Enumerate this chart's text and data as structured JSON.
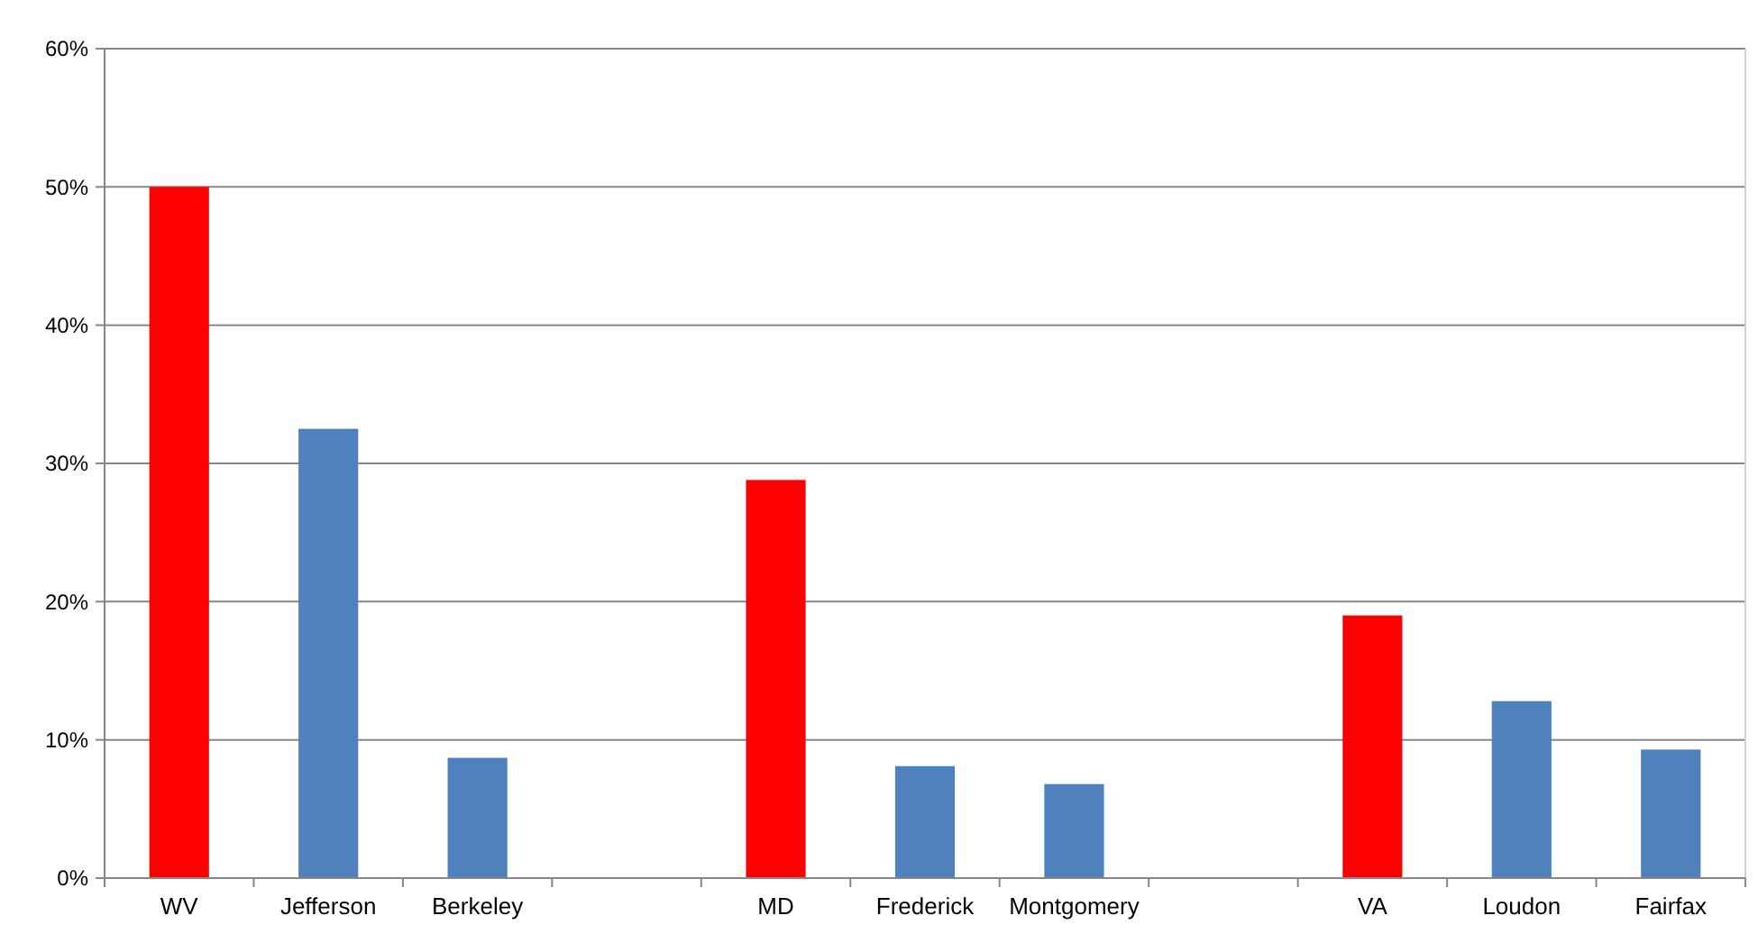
{
  "chart_data": {
    "type": "bar",
    "categories": [
      "WV",
      "Jefferson",
      "Berkeley",
      null,
      "MD",
      "Frederick",
      "Montgomery",
      null,
      "VA",
      "Loudon",
      "Fairfax"
    ],
    "values": [
      50,
      32.5,
      8.7,
      null,
      28.8,
      8.1,
      6.8,
      null,
      19,
      12.8,
      9.3
    ],
    "colors": [
      "#ff0000",
      "#4f81bd",
      "#4f81bd",
      null,
      "#ff0000",
      "#4f81bd",
      "#4f81bd",
      null,
      "#ff0000",
      "#4f81bd",
      "#4f81bd"
    ],
    "ylim": [
      0,
      60
    ],
    "yticks": [
      {
        "value": 0,
        "label": "0%"
      },
      {
        "value": 10,
        "label": "10%"
      },
      {
        "value": 20,
        "label": "20%"
      },
      {
        "value": 30,
        "label": "30%"
      },
      {
        "value": 40,
        "label": "40%"
      },
      {
        "value": 50,
        "label": "50%"
      },
      {
        "value": 60,
        "label": "60%"
      }
    ],
    "grid": "y"
  }
}
